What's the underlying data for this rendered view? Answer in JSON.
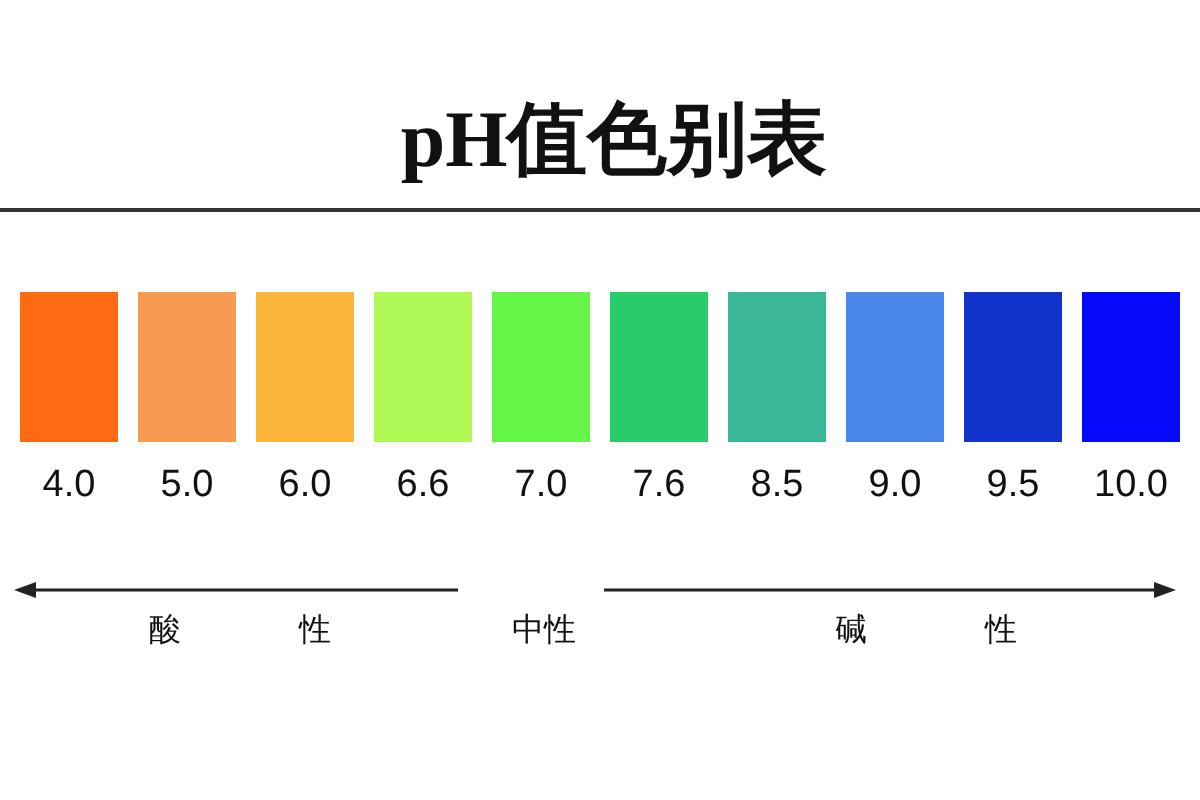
{
  "chart_data": {
    "type": "other",
    "title": "pH值色别表",
    "categories": [
      null,
      null,
      null,
      null,
      null,
      null,
      null,
      null,
      null,
      null
    ],
    "values": [
      4.0,
      5.0,
      6.0,
      6.6,
      7.0,
      7.6,
      8.5,
      9.0,
      9.5,
      10.0
    ],
    "value_labels": [
      "4.0",
      "5.0",
      "6.0",
      "6.6",
      "7.0",
      "7.6",
      "8.5",
      "9.0",
      "9.5",
      "10.0"
    ],
    "colors": [
      "#fd6a12",
      "#f89b52",
      "#fcb53b",
      "#b0f856",
      "#64f548",
      "#28cc68",
      "#39b797",
      "#4a87ea",
      "#1033cc",
      "#0408fb"
    ],
    "annotations": [
      "酸 性",
      "中性",
      "碱 性"
    ]
  }
}
